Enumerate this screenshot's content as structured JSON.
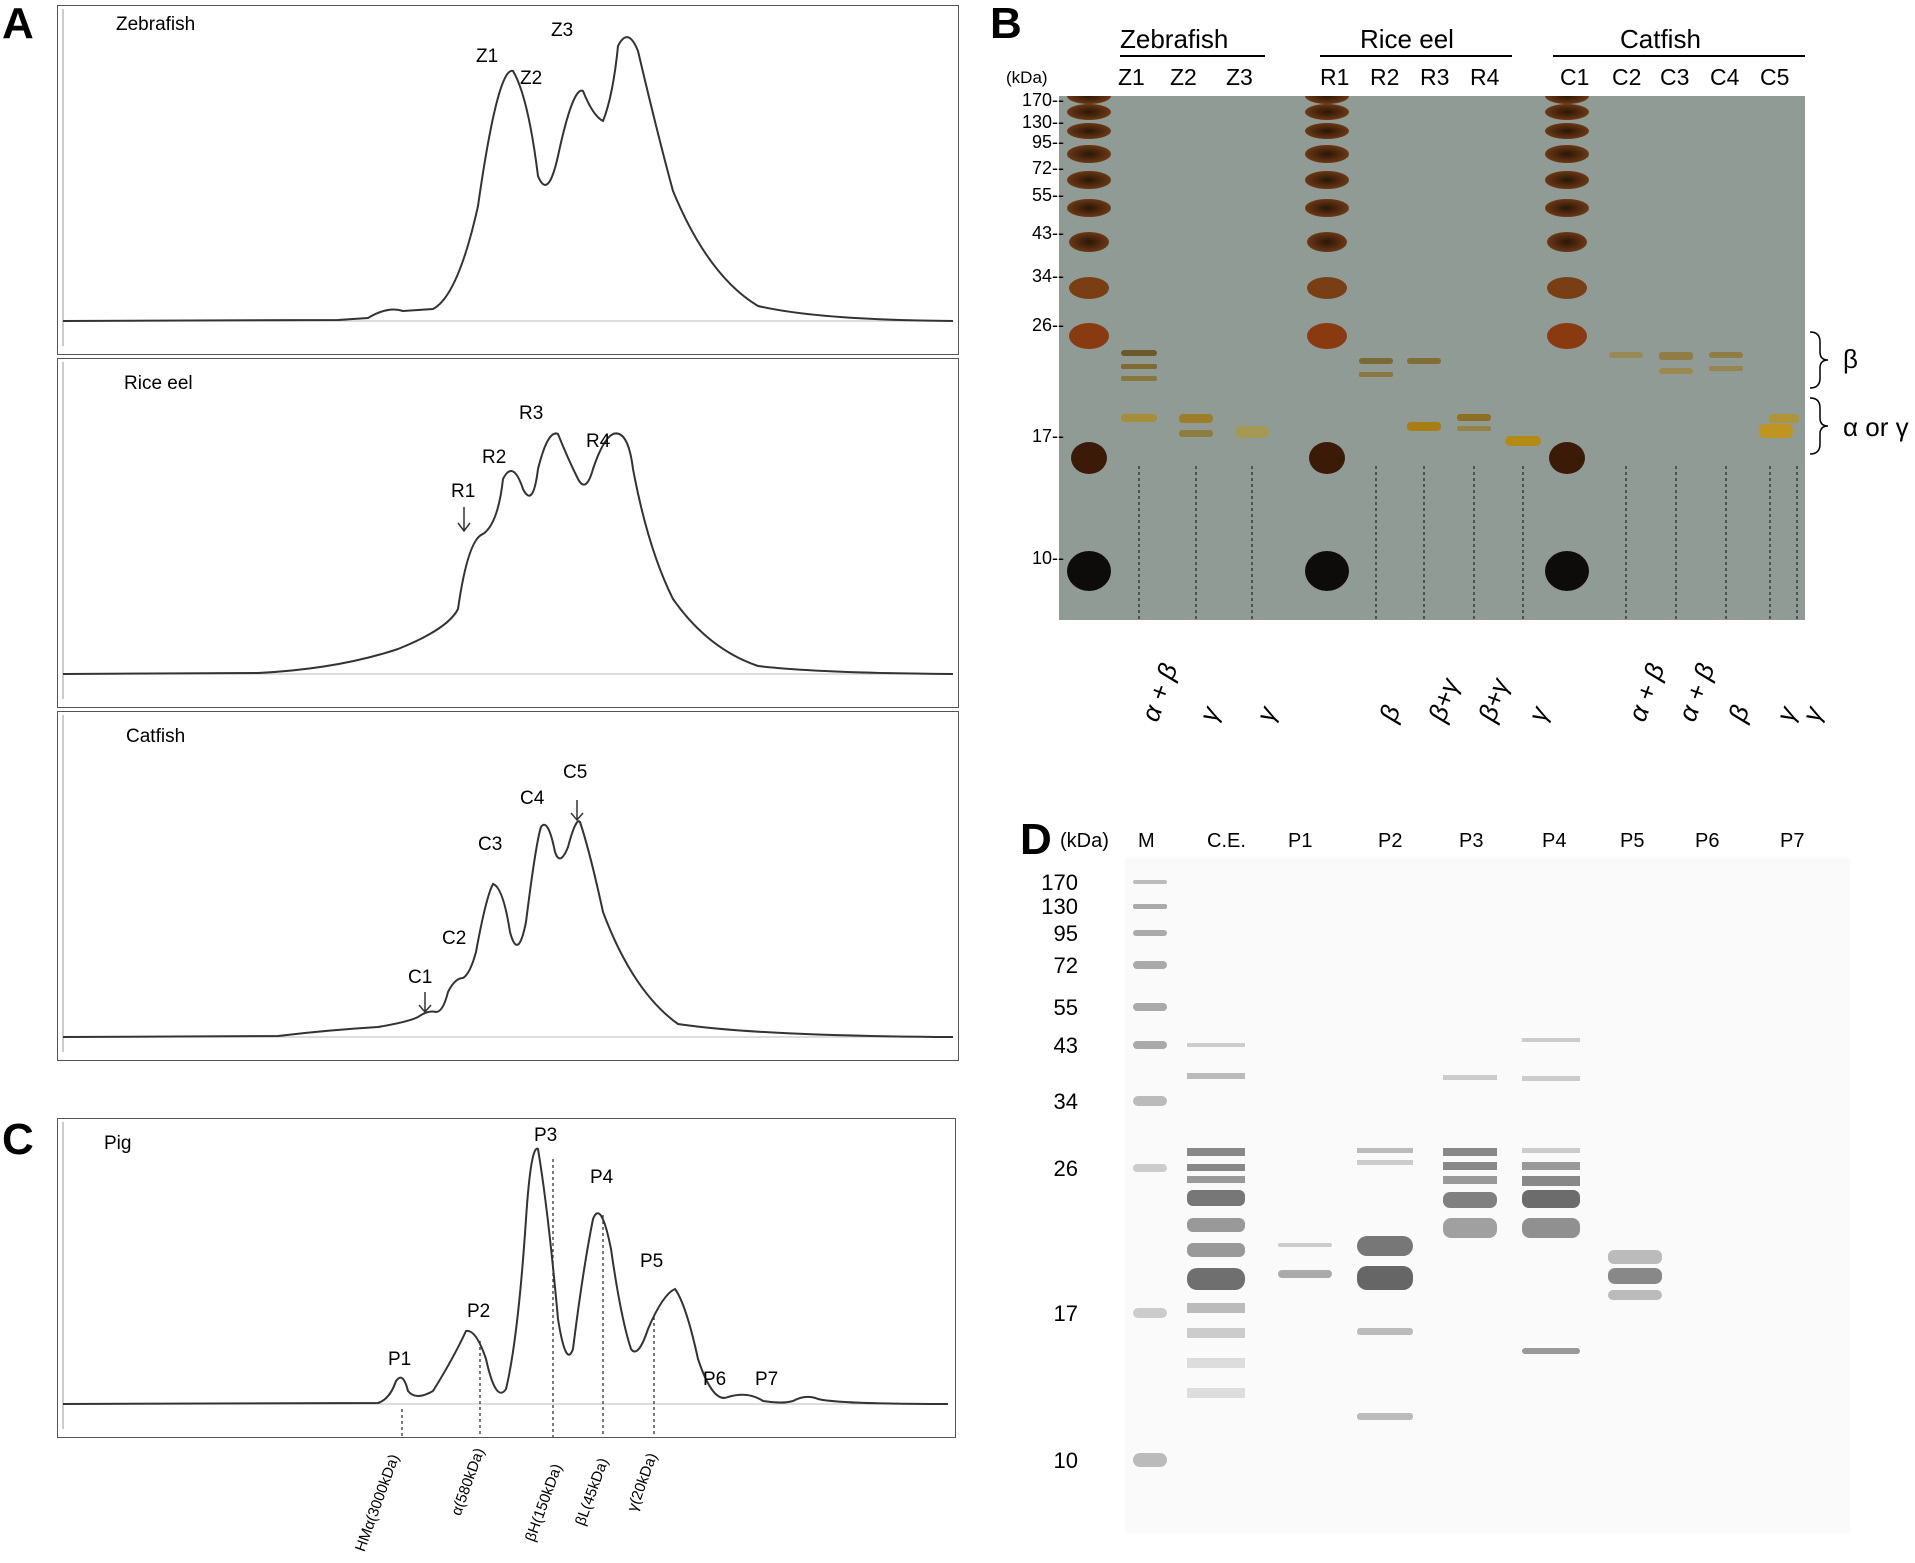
{
  "panel_letters": {
    "A": "A",
    "B": "B",
    "C": "C",
    "D": "D"
  },
  "chromatograms": [
    {
      "species": "Zebrafish",
      "peaks": [
        "Z1",
        "Z2",
        "Z3"
      ]
    },
    {
      "species": "Rice eel",
      "peaks": [
        "R1",
        "R2",
        "R3",
        "R4"
      ]
    },
    {
      "species": "Catfish",
      "peaks": [
        "C1",
        "C2",
        "C3",
        "C4",
        "C5"
      ]
    }
  ],
  "pig": {
    "species": "Pig",
    "peaks": [
      "P1",
      "P2",
      "P3",
      "P4",
      "P5",
      "P6",
      "P7"
    ],
    "fraction_labels": [
      "HMα(3000kDa)",
      "α(580kDa)",
      "βH(150kDa)",
      "βL(45kDa)",
      "γ(20kDa)"
    ]
  },
  "gelB": {
    "kda_label": "(kDa)",
    "markers": [
      "170",
      "130",
      "95",
      "72",
      "55",
      "43",
      "34",
      "26",
      "17",
      "10"
    ],
    "groups": [
      "Zebrafish",
      "Rice eel",
      "Catfish"
    ],
    "lanes": [
      "Z1",
      "Z2",
      "Z3",
      "R1",
      "R2",
      "R3",
      "R4",
      "C1",
      "C2",
      "C3",
      "C4",
      "C5"
    ],
    "assignments": [
      "α + β",
      "γ",
      "γ",
      "β",
      "β+γ",
      "β+γ",
      "γ",
      "α + β",
      "α + β",
      "β",
      "γ",
      "γ"
    ],
    "bracket_beta": "β",
    "bracket_alpha_gamma": "α or γ"
  },
  "gelD": {
    "kda_label": "(kDa)",
    "lanes": [
      "M",
      "C.E.",
      "P1",
      "P2",
      "P3",
      "P4",
      "P5",
      "P6",
      "P7"
    ],
    "markers": [
      "170",
      "130",
      "95",
      "72",
      "55",
      "43",
      "34",
      "26",
      "17",
      "10"
    ]
  }
}
